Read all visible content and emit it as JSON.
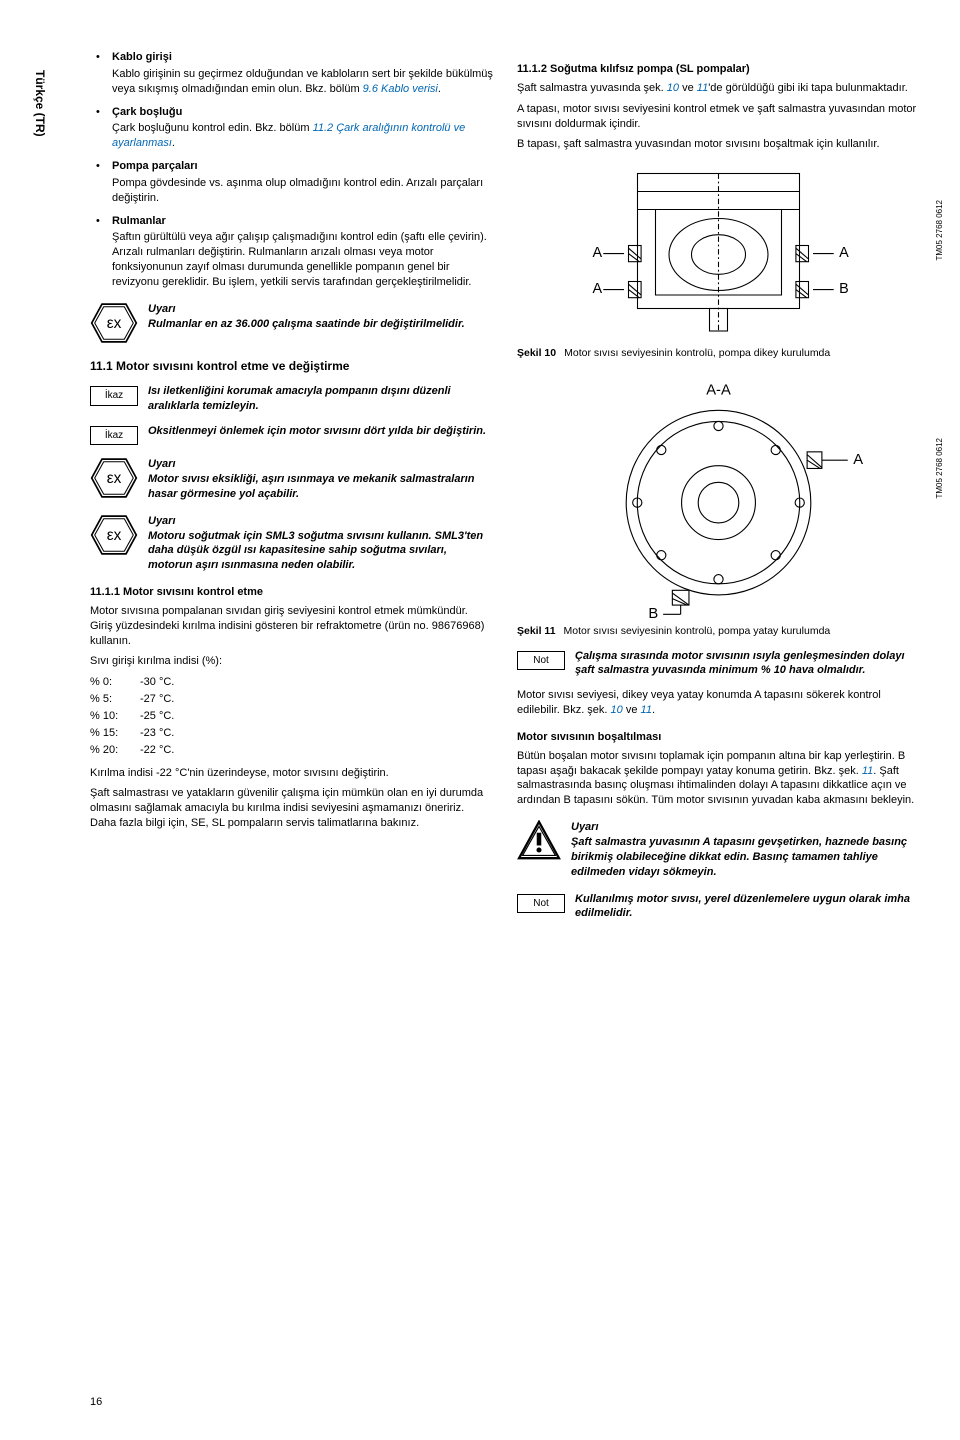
{
  "sideTab": "Türkçe (TR)",
  "col1": {
    "bullets": [
      {
        "title": "Kablo girişi",
        "body": "Kablo girişinin su geçirmez olduğundan ve kabloların sert bir şekilde bükülmüş veya sıkışmış olmadığından emin olun. Bkz. bölüm ",
        "link": "9.6 Kablo verisi"
      },
      {
        "title": "Çark boşluğu",
        "body": "Çark boşluğunu kontrol edin. Bkz. bölüm ",
        "link": "11.2 Çark aralığının kontrolü ve ayarlanması"
      },
      {
        "title": "Pompa parçaları",
        "body": "Pompa gövdesinde vs. aşınma olup olmadığını kontrol edin. Arızalı parçaları değiştirin."
      },
      {
        "title": "Rulmanlar",
        "body": "Şaftın gürültülü veya ağır çalışıp çalışmadığını kontrol edin (şaftı elle çevirin). Arızalı rulmanları değiştirin. Rulmanların arızalı olması veya motor fonksiyonunun zayıf olması durumunda genellikle pompanın genel bir revizyonu gereklidir. Bu işlem, yetkili servis tarafından gerçekleştirilmelidir."
      }
    ],
    "exWarn1_title": "Uyarı",
    "exWarn1": "Rulmanlar en az 36.000 çalışma saatinde bir değiştirilmelidir.",
    "sec11_1": "11.1 Motor sıvısını kontrol etme ve değiştirme",
    "ikaz1": "Isı iletkenliğini korumak amacıyla pompanın dışını düzenli aralıklarla temizleyin.",
    "ikaz2": "Oksitlenmeyi önlemek için motor sıvısını dört yılda bir değiştirin.",
    "exWarn2_title": "Uyarı",
    "exWarn2": "Motor sıvısı eksikliği, aşırı ısınmaya ve mekanik salmastraların hasar görmesine yol açabilir.",
    "exWarn3_title": "Uyarı",
    "exWarn3": "Motoru soğutmak için SML3 soğutma sıvısını kullanın. SML3'ten daha düşük özgül ısı kapasitesine sahip soğutma sıvıları, motorun aşırı ısınmasına neden olabilir.",
    "sec11_1_1": "11.1.1 Motor sıvısını kontrol etme",
    "p_control1": "Motor sıvısına pompalanan sıvıdan giriş seviyesini kontrol etmek mümkündür. Giriş yüzdesindeki kırılma indisini gösteren bir refraktometre (ürün no. 98676968) kullanın.",
    "p_control_label": "Sıvı girişi kırılma indisi (%):",
    "breaklist": [
      {
        "p": "% 0:",
        "t": "-30 °C."
      },
      {
        "p": "% 5:",
        "t": "-27 °C."
      },
      {
        "p": "% 10:",
        "t": "-25 °C."
      },
      {
        "p": "% 15:",
        "t": "-23 °C."
      },
      {
        "p": "% 20:",
        "t": "-22 °C."
      }
    ],
    "p_after1": "Kırılma indisi -22 °C'nin üzerindeyse, motor sıvısını değiştirin.",
    "p_after2": "Şaft salmastrası ve yatakların güvenilir çalışma için mümkün olan en iyi durumda olmasını sağlamak amacıyla bu kırılma indisi seviyesini aşmamanızı öneririz. Daha fazla bilgi için, SE, SL pompaların servis talimatlarına bakınız.",
    "ikazLabel": "İkaz"
  },
  "col2": {
    "sec11_1_2": "11.1.2 Soğutma kılıfsız pompa (SL pompalar)",
    "p1a": "Şaft salmastra yuvasında şek. ",
    "p1_link1": "10",
    "p1_mid": " ve ",
    "p1_link2": "11",
    "p1b": "'de görüldüğü gibi iki tapa bulunmaktadır.",
    "p2": "A tapası, motor sıvısı seviyesini kontrol etmek ve şaft salmastra yuvasından motor sıvısını doldurmak içindir.",
    "p3": "B tapası, şaft salmastra yuvasından motor sıvısını boşaltmak için kullanılır.",
    "fig10_label": "Şekil 10",
    "fig10_caption": "Motor sıvısı seviyesinin kontrolü, pompa dikey kurulumda",
    "fig10_ref": "TM05 2768 0612",
    "fig11_label": "Şekil 11",
    "fig11_caption": "Motor sıvısı seviyesinin kontrolü, pompa yatay kurulumda",
    "fig11_ref": "TM05 2768 0612",
    "not1": "Çalışma sırasında motor sıvısının ısıyla genleşmesinden dolayı şaft salmastra yuvasında minimum % 10 hava olmalıdır.",
    "p_after_not1a": "Motor sıvısı seviyesi, dikey veya yatay konumda A tapasını sökerek kontrol edilebilir. Bkz. şek. ",
    "p_after_not1_l1": "10",
    "p_after_not1_mid": " ve ",
    "p_after_not1_l2": "11",
    "p_after_not1b": ".",
    "h_bosalt": "Motor sıvısının boşaltılması",
    "p_bosalt_a": "Bütün boşalan motor sıvısını toplamak için pompanın altına bir kap yerleştirin. B tapası aşağı bakacak şekilde pompayı yatay konuma getirin. Bkz. şek. ",
    "p_bosalt_l": "11",
    "p_bosalt_b": ". Şaft salmastrasında basınç oluşması ihtimalinden dolayı A tapasını dikkatlice açın ve ardından B tapasını sökün. Tüm motor sıvısının yuvadan kaba akmasını bekleyin.",
    "warn_title": "Uyarı",
    "warn_body": "Şaft salmastra yuvasının A tapasını gevşetirken, haznede basınç birikmiş olabileceğine dikkat edin. Basınç tamamen tahliye edilmeden vidayı sökmeyin.",
    "not2": "Kullanılmış motor sıvısı, yerel düzenlemelere uygun olarak imha edilmelidir.",
    "notLabel": "Not",
    "letters": {
      "A": "A",
      "B": "B",
      "AA": "A-A"
    }
  },
  "pageNum": "16"
}
